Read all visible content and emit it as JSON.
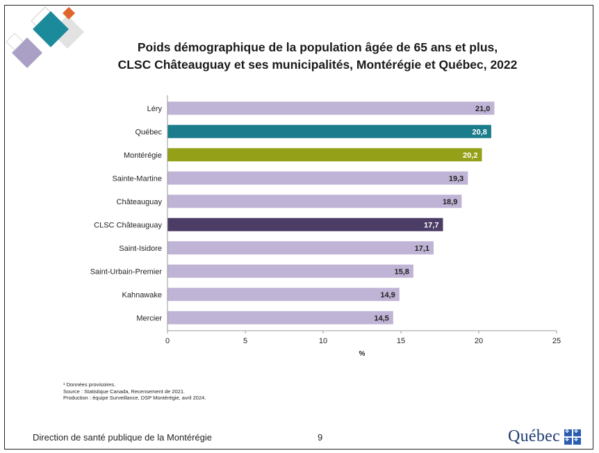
{
  "title_lines": [
    "Poids démographique de la population âgée de 65 ans et plus,",
    "CLSC Châteauguay et ses municipalités, Montérégie et Québec, 2022"
  ],
  "chart_data": {
    "type": "bar",
    "orientation": "horizontal",
    "categories": [
      "Léry",
      "Québec",
      "Montérégie",
      "Sainte-Martine",
      "Châteauguay",
      "CLSC Châteauguay",
      "Saint-Isidore",
      "Saint-Urbain-Premier",
      "Kahnawake",
      "Mercier"
    ],
    "values": [
      21.0,
      20.8,
      20.2,
      19.3,
      18.9,
      17.7,
      17.1,
      15.8,
      14.9,
      14.5
    ],
    "value_labels": [
      "21,0",
      "20,8",
      "20,2",
      "19,3",
      "18,9",
      "17,7",
      "17,1",
      "15,8",
      "14,9",
      "14,5"
    ],
    "bar_colors": [
      "#c0b4d6",
      "#1b7d8c",
      "#94a017",
      "#c0b4d6",
      "#c0b4d6",
      "#4c3d66",
      "#c0b4d6",
      "#c0b4d6",
      "#c0b4d6",
      "#c0b4d6"
    ],
    "value_label_colors": [
      "#222222",
      "#ffffff",
      "#ffffff",
      "#222222",
      "#222222",
      "#ffffff",
      "#222222",
      "#222222",
      "#222222",
      "#222222"
    ],
    "xlabel": "%",
    "xlim": [
      0,
      25
    ],
    "xticks": [
      0,
      5,
      10,
      15,
      20,
      25
    ],
    "grid": false,
    "legend": "none"
  },
  "notes": [
    "¹ Données provisoires.",
    "Source : Statistique Canada, Recensement de 2021.",
    "Production : équipe Surveillance, DSP Montérégie, avril 2024."
  ],
  "footer": {
    "organization": "Direction de santé publique de la Montérégie",
    "page_number": "9",
    "logo_text": "Québec"
  },
  "colors": {
    "default_bar": "#c0b4d6",
    "quebec_bar": "#1b7d8c",
    "monteregie_bar": "#94a017",
    "clsc_bar": "#4c3d66",
    "logo_blue": "#1f3b70"
  }
}
